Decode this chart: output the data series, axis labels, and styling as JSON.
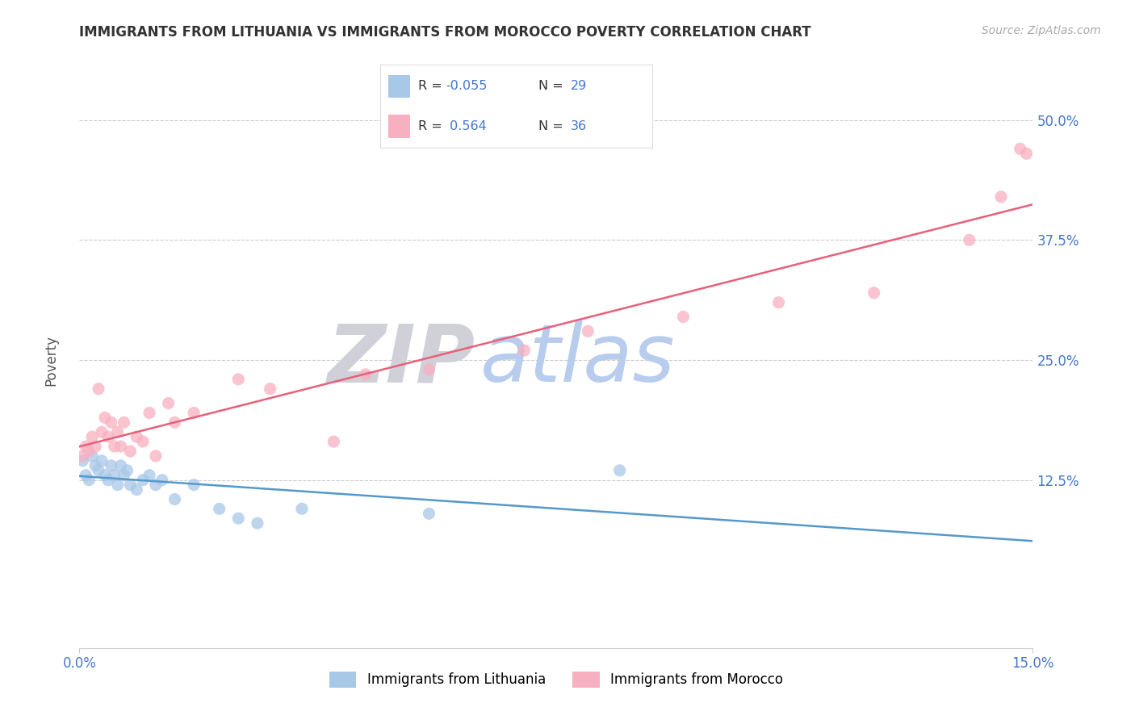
{
  "title": "IMMIGRANTS FROM LITHUANIA VS IMMIGRANTS FROM MOROCCO POVERTY CORRELATION CHART",
  "source": "Source: ZipAtlas.com",
  "xlim": [
    0.0,
    15.0
  ],
  "ylim": [
    -5.0,
    55.0
  ],
  "ytick_positions": [
    12.5,
    25.0,
    37.5,
    50.0
  ],
  "xtick_positions": [
    0.0,
    15.0
  ],
  "xtick_labels": [
    "0.0%",
    "15.0%"
  ],
  "ytick_labels": [
    "12.5%",
    "25.0%",
    "37.5%",
    "50.0%"
  ],
  "legend_R1": "-0.055",
  "legend_N1": "29",
  "legend_R2": "0.564",
  "legend_N2": "36",
  "color_lithuania": "#a8c8e8",
  "color_morocco": "#f8b0c0",
  "line_color_lithuania": "#5599cc",
  "line_color_morocco": "#e8607a",
  "watermark_ZIP": "ZIP",
  "watermark_atlas": "atlas",
  "watermark_color_ZIP": "#d0d0d8",
  "watermark_color_atlas": "#b8ccee",
  "lithuania_x": [
    0.05,
    0.1,
    0.15,
    0.2,
    0.25,
    0.3,
    0.35,
    0.4,
    0.45,
    0.5,
    0.55,
    0.6,
    0.65,
    0.7,
    0.75,
    0.8,
    0.9,
    1.0,
    1.1,
    1.2,
    1.3,
    1.5,
    1.8,
    2.2,
    2.5,
    2.8,
    3.5,
    5.5,
    8.5
  ],
  "lithuania_y": [
    14.5,
    13.0,
    12.5,
    15.0,
    14.0,
    13.5,
    14.5,
    13.0,
    12.5,
    14.0,
    13.0,
    12.0,
    14.0,
    13.0,
    13.5,
    12.0,
    11.5,
    12.5,
    13.0,
    12.0,
    12.5,
    10.5,
    12.0,
    9.5,
    8.5,
    8.0,
    9.5,
    9.0,
    13.5
  ],
  "morocco_x": [
    0.05,
    0.1,
    0.15,
    0.2,
    0.25,
    0.3,
    0.35,
    0.4,
    0.45,
    0.5,
    0.55,
    0.6,
    0.65,
    0.7,
    0.8,
    0.9,
    1.0,
    1.1,
    1.2,
    1.4,
    1.5,
    1.8,
    2.5,
    3.0,
    4.0,
    4.5,
    5.5,
    7.0,
    8.0,
    9.5,
    11.0,
    12.5,
    14.0,
    14.5,
    14.8,
    14.9
  ],
  "morocco_y": [
    15.0,
    16.0,
    15.5,
    17.0,
    16.0,
    22.0,
    17.5,
    19.0,
    17.0,
    18.5,
    16.0,
    17.5,
    16.0,
    18.5,
    15.5,
    17.0,
    16.5,
    19.5,
    15.0,
    20.5,
    18.5,
    19.5,
    23.0,
    22.0,
    16.5,
    23.5,
    24.0,
    26.0,
    28.0,
    29.5,
    31.0,
    32.0,
    37.5,
    42.0,
    47.0,
    46.5
  ],
  "background_color": "#ffffff",
  "grid_color": "#cccccc",
  "title_fontsize": 12,
  "tick_label_color": "#4477cc",
  "ylabel_color": "#555555"
}
